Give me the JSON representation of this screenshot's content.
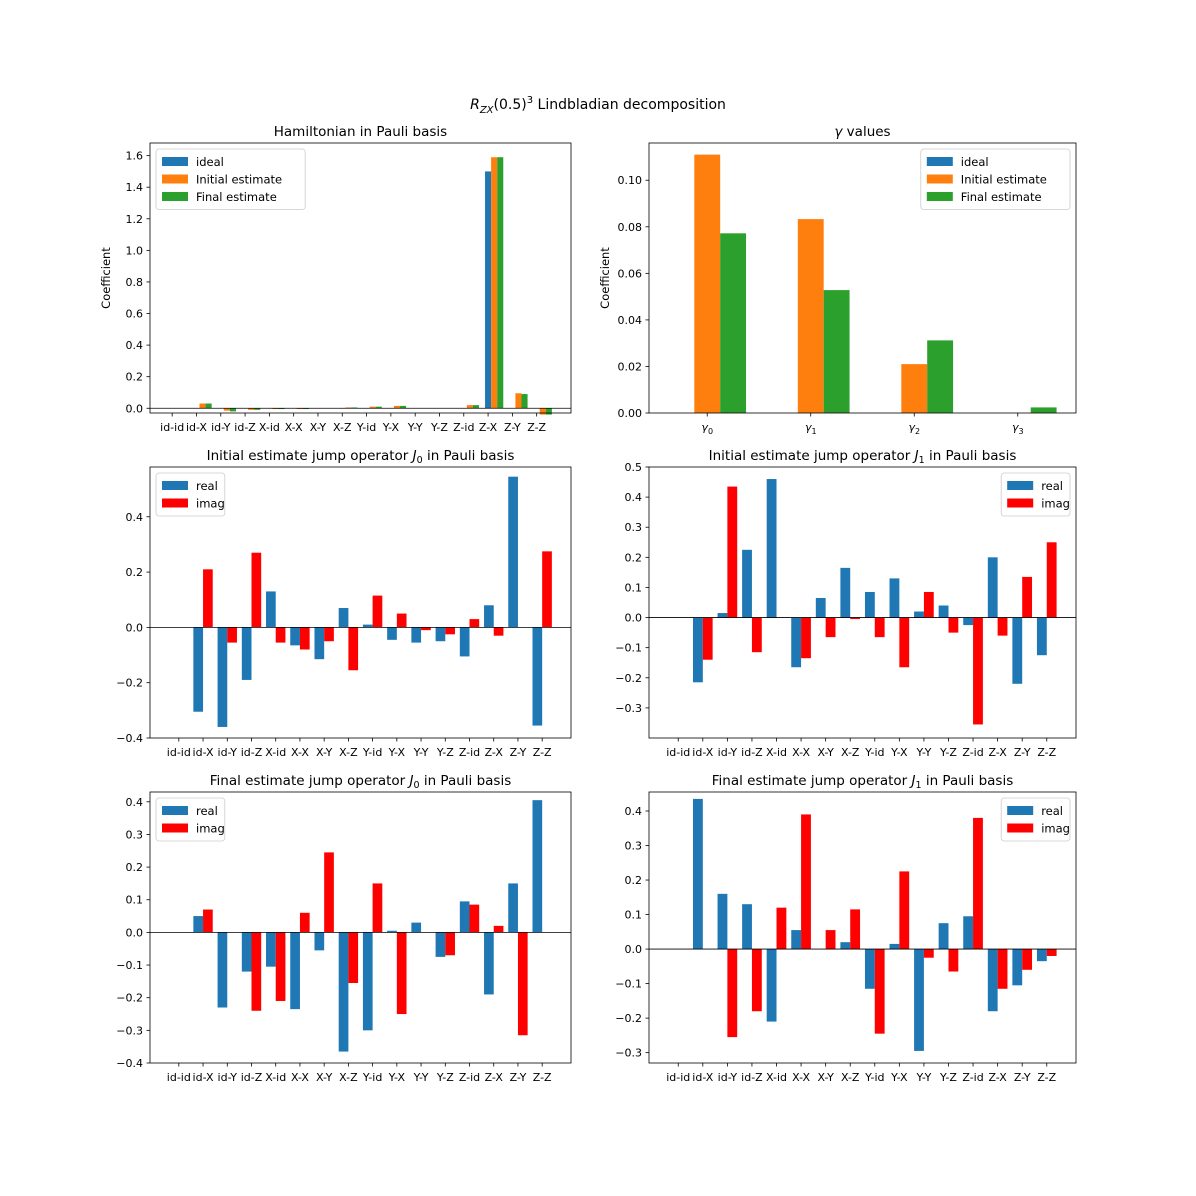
{
  "figure": {
    "suptitle_main": "R",
    "suptitle_sub": "ZX",
    "suptitle_mid": "(0.5)",
    "suptitle_sup": "3",
    "suptitle_rest": " Lindbladian decomposition"
  },
  "colors": {
    "ideal": "#1f77b4",
    "initial": "#ff7f0e",
    "final": "#2ca02c",
    "real": "#1f77b4",
    "imag": "#ff0000"
  },
  "chart_data": [
    {
      "id": "hamiltonian",
      "type": "bar",
      "title": "Hamiltonian in Pauli basis",
      "ylabel": "Coefficient",
      "ylim": [
        -0.03,
        1.68
      ],
      "yticks": [
        0.0,
        0.2,
        0.4,
        0.6,
        0.8,
        1.0,
        1.2,
        1.4,
        1.6
      ],
      "ytick_labels": [
        "0.0",
        "0.2",
        "0.4",
        "0.6",
        "0.8",
        "1.0",
        "1.2",
        "1.4",
        "1.6"
      ],
      "legend_pos": "top-left",
      "categories": [
        "id-id",
        "id-X",
        "id-Y",
        "id-Z",
        "X-id",
        "X-X",
        "X-Y",
        "X-Z",
        "Y-id",
        "Y-X",
        "Y-Y",
        "Y-Z",
        "Z-id",
        "Z-X",
        "Z-Y",
        "Z-Z"
      ],
      "series": [
        {
          "name": "ideal",
          "color": "#1f77b4",
          "values": [
            0,
            0,
            0,
            0,
            0,
            0,
            0,
            0,
            0,
            0,
            0,
            0,
            0,
            1.5,
            0,
            0
          ]
        },
        {
          "name": "Initial estimate",
          "color": "#ff7f0e",
          "values": [
            0,
            0.03,
            -0.015,
            -0.01,
            -0.005,
            -0.005,
            0,
            0.005,
            0.01,
            0.015,
            0,
            0,
            0.02,
            1.59,
            0.095,
            -0.04
          ]
        },
        {
          "name": "Final estimate",
          "color": "#2ca02c",
          "values": [
            0,
            0.03,
            -0.02,
            -0.01,
            -0.005,
            -0.005,
            0,
            0.005,
            0.01,
            0.015,
            0,
            0,
            0.02,
            1.59,
            0.09,
            -0.04
          ]
        }
      ]
    },
    {
      "id": "gamma",
      "type": "bar",
      "title": "γ values",
      "ylabel": "Coefficient",
      "ylim": [
        0,
        0.116
      ],
      "yticks": [
        0.0,
        0.02,
        0.04,
        0.06,
        0.08,
        0.1
      ],
      "ytick_labels": [
        "0.00",
        "0.02",
        "0.04",
        "0.06",
        "0.08",
        "0.10"
      ],
      "legend_pos": "top-right",
      "categories": [
        "γ0",
        "γ1",
        "γ2",
        "γ3"
      ],
      "category_base": "γ",
      "category_subs": [
        "0",
        "1",
        "2",
        "3"
      ],
      "series": [
        {
          "name": "ideal",
          "color": "#1f77b4",
          "values": [
            0,
            0,
            0,
            0
          ]
        },
        {
          "name": "Initial estimate",
          "color": "#ff7f0e",
          "values": [
            0.111,
            0.0833,
            0.021,
            0
          ]
        },
        {
          "name": "Final estimate",
          "color": "#2ca02c",
          "values": [
            0.0772,
            0.0528,
            0.0312,
            0.0024
          ]
        }
      ]
    },
    {
      "id": "init_j0",
      "type": "bar",
      "title": "Initial estimate jump operator J0 in Pauli basis",
      "title_pre": "Initial estimate jump operator ",
      "title_sym": "J",
      "title_sub": "0",
      "title_post": " in Pauli basis",
      "ylim": [
        -0.4,
        0.58
      ],
      "yticks": [
        -0.4,
        -0.2,
        0.0,
        0.2,
        0.4
      ],
      "ytick_labels": [
        "−0.4",
        "−0.2",
        "0.0",
        "0.2",
        "0.4"
      ],
      "legend_pos": "top-left",
      "categories": [
        "id-id",
        "id-X",
        "id-Y",
        "id-Z",
        "X-id",
        "X-X",
        "X-Y",
        "X-Z",
        "Y-id",
        "Y-X",
        "Y-Y",
        "Y-Z",
        "Z-id",
        "Z-X",
        "Z-Y",
        "Z-Z"
      ],
      "series": [
        {
          "name": "real",
          "color": "#1f77b4",
          "values": [
            0,
            -0.305,
            -0.36,
            -0.19,
            0.13,
            -0.065,
            -0.115,
            0.07,
            0.01,
            -0.045,
            -0.055,
            -0.05,
            -0.105,
            0.08,
            0.545,
            -0.355
          ]
        },
        {
          "name": "imag",
          "color": "#ff0000",
          "values": [
            0,
            0.21,
            -0.055,
            0.27,
            -0.055,
            -0.08,
            -0.05,
            -0.155,
            0.115,
            0.05,
            -0.01,
            -0.025,
            0.03,
            -0.03,
            0,
            0.275
          ]
        }
      ]
    },
    {
      "id": "init_j1",
      "type": "bar",
      "title": "Initial estimate jump operator J1 in Pauli basis",
      "title_pre": "Initial estimate jump operator ",
      "title_sym": "J",
      "title_sub": "1",
      "title_post": " in Pauli basis",
      "ylim": [
        -0.4,
        0.5
      ],
      "yticks": [
        -0.3,
        -0.2,
        -0.1,
        0.0,
        0.1,
        0.2,
        0.3,
        0.4,
        0.5
      ],
      "ytick_labels": [
        "−0.3",
        "−0.2",
        "−0.1",
        "0.0",
        "0.1",
        "0.2",
        "0.3",
        "0.4",
        "0.5"
      ],
      "legend_pos": "top-right",
      "categories": [
        "id-id",
        "id-X",
        "id-Y",
        "id-Z",
        "X-id",
        "X-X",
        "X-Y",
        "X-Z",
        "Y-id",
        "Y-X",
        "Y-Y",
        "Y-Z",
        "Z-id",
        "Z-X",
        "Z-Y",
        "Z-Z"
      ],
      "series": [
        {
          "name": "real",
          "color": "#1f77b4",
          "values": [
            0,
            -0.215,
            0.015,
            0.225,
            0.46,
            -0.165,
            0.065,
            0.165,
            0.085,
            0.13,
            0.02,
            0.04,
            -0.025,
            0.2,
            -0.22,
            -0.125
          ]
        },
        {
          "name": "imag",
          "color": "#ff0000",
          "values": [
            0,
            -0.14,
            0.435,
            -0.115,
            0,
            -0.135,
            -0.065,
            -0.005,
            -0.065,
            -0.165,
            0.085,
            -0.05,
            -0.355,
            -0.06,
            0.135,
            0.25
          ]
        }
      ]
    },
    {
      "id": "final_j0",
      "type": "bar",
      "title": "Final estimate jump operator J0 in Pauli basis",
      "title_pre": "Final estimate jump operator ",
      "title_sym": "J",
      "title_sub": "0",
      "title_post": " in Pauli basis",
      "ylim": [
        -0.4,
        0.43
      ],
      "yticks": [
        -0.4,
        -0.3,
        -0.2,
        -0.1,
        0.0,
        0.1,
        0.2,
        0.3,
        0.4
      ],
      "ytick_labels": [
        "−0.4",
        "−0.3",
        "−0.2",
        "−0.1",
        "0.0",
        "0.1",
        "0.2",
        "0.3",
        "0.4"
      ],
      "legend_pos": "top-left",
      "categories": [
        "id-id",
        "id-X",
        "id-Y",
        "id-Z",
        "X-id",
        "X-X",
        "X-Y",
        "X-Z",
        "Y-id",
        "Y-X",
        "Y-Y",
        "Y-Z",
        "Z-id",
        "Z-X",
        "Z-Y",
        "Z-Z"
      ],
      "series": [
        {
          "name": "real",
          "color": "#1f77b4",
          "values": [
            0,
            0.05,
            -0.23,
            -0.12,
            -0.105,
            -0.235,
            -0.055,
            -0.365,
            -0.3,
            0.005,
            0.03,
            -0.075,
            0.095,
            -0.19,
            0.15,
            0.405
          ]
        },
        {
          "name": "imag",
          "color": "#ff0000",
          "values": [
            0,
            0.07,
            0,
            -0.24,
            -0.21,
            0.06,
            0.245,
            -0.155,
            0.15,
            -0.25,
            0,
            -0.07,
            0.085,
            0.02,
            -0.315,
            0
          ]
        }
      ]
    },
    {
      "id": "final_j1",
      "type": "bar",
      "title": "Final estimate jump operator J1 in Pauli basis",
      "title_pre": "Final estimate jump operator ",
      "title_sym": "J",
      "title_sub": "1",
      "title_post": " in Pauli basis",
      "ylim": [
        -0.33,
        0.455
      ],
      "yticks": [
        -0.3,
        -0.2,
        -0.1,
        0.0,
        0.1,
        0.2,
        0.3,
        0.4
      ],
      "ytick_labels": [
        "−0.3",
        "−0.2",
        "−0.1",
        "0.0",
        "0.1",
        "0.2",
        "0.3",
        "0.4"
      ],
      "legend_pos": "top-right",
      "categories": [
        "id-id",
        "id-X",
        "id-Y",
        "id-Z",
        "X-id",
        "X-X",
        "X-Y",
        "X-Z",
        "Y-id",
        "Y-X",
        "Y-Y",
        "Y-Z",
        "Z-id",
        "Z-X",
        "Z-Y",
        "Z-Z"
      ],
      "series": [
        {
          "name": "real",
          "color": "#1f77b4",
          "values": [
            0,
            0.435,
            0.16,
            0.13,
            -0.21,
            0.055,
            0,
            0.02,
            -0.115,
            0.015,
            -0.295,
            0.075,
            0.095,
            -0.18,
            -0.105,
            -0.035
          ]
        },
        {
          "name": "imag",
          "color": "#ff0000",
          "values": [
            0,
            0,
            -0.255,
            -0.18,
            0.12,
            0.39,
            0.055,
            0.115,
            -0.245,
            0.225,
            -0.025,
            -0.065,
            0.38,
            -0.115,
            -0.06,
            -0.02
          ]
        }
      ]
    }
  ]
}
